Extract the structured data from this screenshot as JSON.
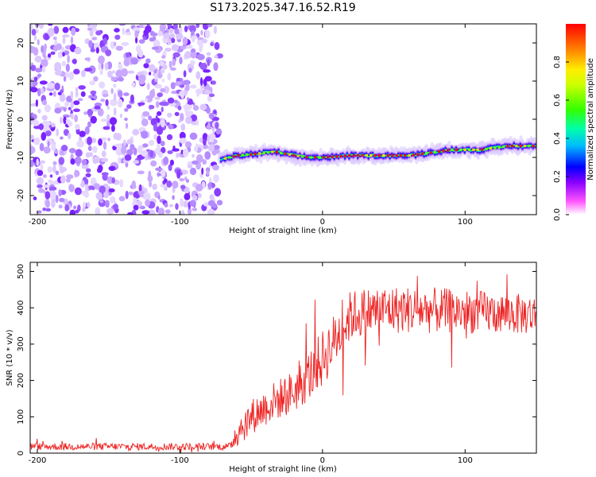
{
  "title": "S173.2025.347.16.52.R19",
  "chart_data": [
    {
      "type": "heatmap",
      "xlabel": "Height of straight line (km)",
      "ylabel": "Frequency (Hz)",
      "xlim": [
        -205,
        150
      ],
      "ylim": [
        -25,
        25
      ],
      "xticks": [
        -200,
        -100,
        0,
        100
      ],
      "yticks": [
        -20,
        -10,
        0,
        10,
        20
      ],
      "colorbar": {
        "label": "Normalized spectral amplitude",
        "ticks": [
          "0.0",
          "0.2",
          "0.4",
          "0.6",
          "0.8"
        ],
        "range": [
          0,
          1
        ]
      },
      "noise_region_x": [
        -205,
        -72
      ],
      "signal_track": {
        "x": [
          -72,
          -60,
          -45,
          -35,
          -20,
          -10,
          0,
          20,
          40,
          60,
          70,
          80,
          90,
          100,
          110,
          120,
          130,
          150
        ],
        "freq": [
          -10.5,
          -9.5,
          -9,
          -8.5,
          -9.5,
          -10,
          -10,
          -9.5,
          -9.5,
          -9.5,
          -9,
          -8.5,
          -8,
          -8,
          -8,
          -7.5,
          -7,
          -7
        ]
      }
    },
    {
      "type": "line",
      "xlabel": "Height of straight line (km)",
      "ylabel": "SNR (10 * v/v)",
      "xlim": [
        -205,
        150
      ],
      "ylim": [
        0,
        525
      ],
      "xticks": [
        -200,
        -100,
        0,
        100
      ],
      "yticks": [
        0,
        100,
        200,
        300,
        400,
        500
      ],
      "series_color": "#ee2222",
      "trend": {
        "x": [
          -205,
          -65,
          -60,
          -50,
          -35,
          -20,
          -10,
          0,
          10,
          20,
          40,
          60,
          100,
          150
        ],
        "y": [
          18,
          18,
          60,
          100,
          140,
          170,
          210,
          260,
          320,
          380,
          395,
          395,
          390,
          380
        ]
      },
      "noise_amplitude": {
        "x": [
          -205,
          -65,
          -60,
          -20,
          0,
          20,
          150
        ],
        "amp": [
          10,
          10,
          45,
          60,
          80,
          70,
          55
        ]
      }
    }
  ]
}
